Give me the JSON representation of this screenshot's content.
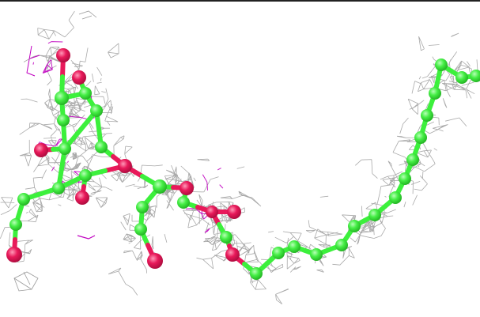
{
  "scene": {
    "kind": "molecular-model-in-electron-density-mesh",
    "colors": {
      "background": "#ffffff",
      "mesh": "#9a9a9a",
      "difference_mesh": "#c000c0",
      "carbon": "#3cf03c",
      "oxygen": "#e8195a",
      "top_rule": "#222222"
    },
    "atom_counts": {
      "carbon": 32,
      "oxygen": 10
    }
  }
}
